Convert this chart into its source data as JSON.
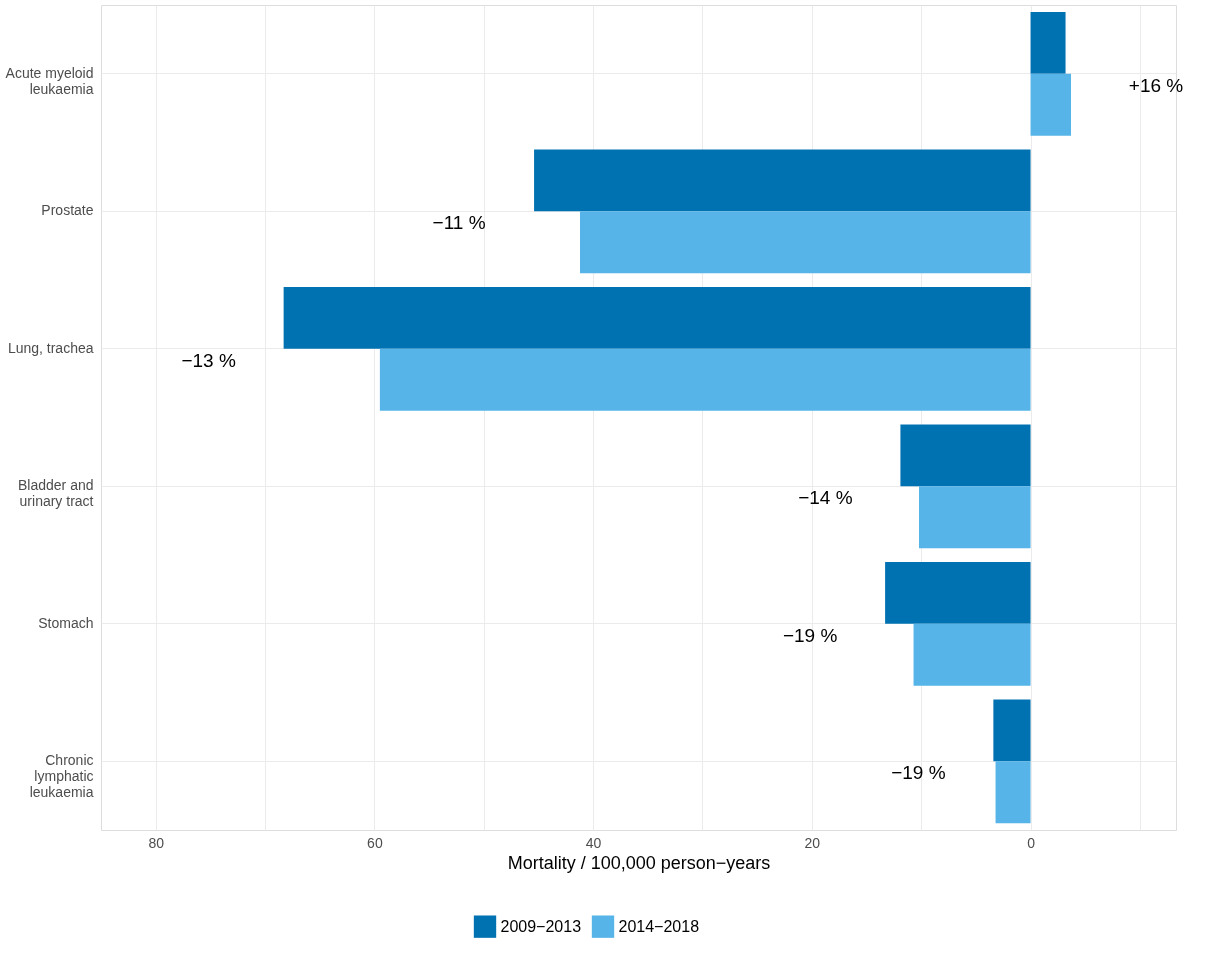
{
  "chart_data": {
    "type": "bar",
    "orientation": "horizontal",
    "categories": [
      "Acute myeloid\nleukaemia",
      "Prostate",
      "Lung, trachea",
      "Bladder and\nurinary tract",
      "Stomach",
      "Chronic\nlymphatic\nleukaemia"
    ],
    "series": [
      {
        "name": "2009−2013",
        "color": "#0072b2",
        "values": [
          -3.2,
          45.4,
          68.3,
          11.9,
          13.3,
          3.4
        ]
      },
      {
        "name": "2014−2018",
        "color": "#56b4e9",
        "values": [
          -3.7,
          41.2,
          59.5,
          10.2,
          10.7,
          3.2
        ]
      }
    ],
    "xlabel": "Mortality / 100,000 person−years",
    "xlim": [
      85,
      -13.3
    ],
    "xticks": [
      80,
      {
        "value": 70,
        "label": null
      },
      60,
      {
        "value": 50,
        "label": null
      },
      40,
      {
        "value": 30,
        "label": null
      },
      20,
      {
        "value": 10,
        "label": null
      },
      0,
      {
        "value": -10,
        "label": null
      }
    ],
    "annotations": [
      "+16 %",
      "−11 %",
      "−13 %",
      "−14 %",
      "−19 %",
      "−19 %"
    ],
    "grid": true,
    "legend": "bottom"
  }
}
